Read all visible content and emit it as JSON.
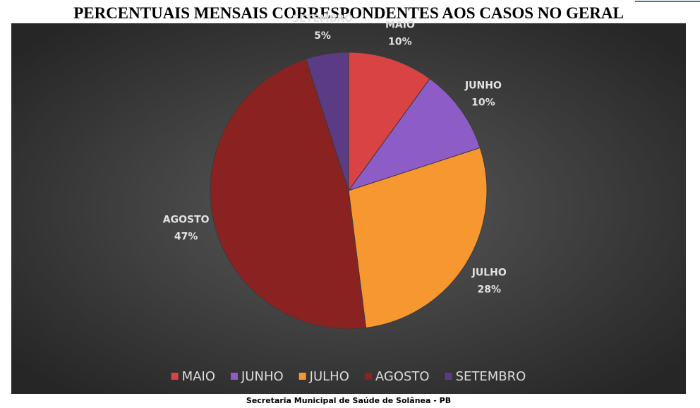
{
  "chart_data": {
    "type": "pie",
    "title": "PERCENTUAIS MENSAIS CORRESPONDENTES AOS CASOS NO GERAL",
    "categories": [
      "MAIO",
      "JUNHO",
      "JULHO",
      "AGOSTO",
      "SETEMBRO"
    ],
    "values": [
      10,
      10,
      28,
      47,
      5
    ],
    "value_labels": [
      "10%",
      "10%",
      "28%",
      "47%",
      "5%"
    ],
    "colors": [
      "#d94343",
      "#8d5cc6",
      "#f7972f",
      "#8a2222",
      "#5b3b84"
    ],
    "legend": "bottom"
  },
  "footer": "Secretaria Municipal de Saúde de Solânea - PB"
}
